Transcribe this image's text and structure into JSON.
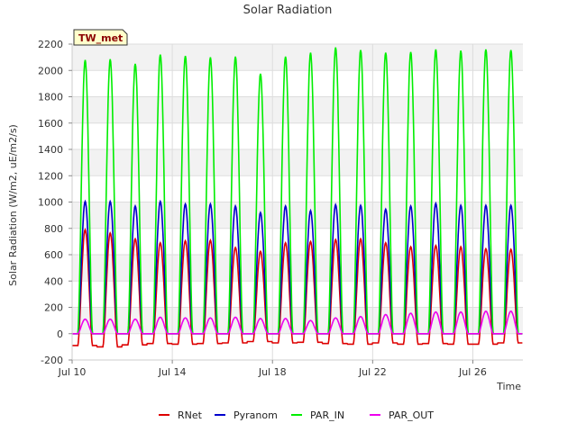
{
  "chart_data": {
    "type": "line",
    "title": "Solar Radiation",
    "xlabel": "Time",
    "ylabel": "Solar Radiation (W/m2, uE/m2/s)",
    "site_label": "TW_met",
    "ylim": [
      -200,
      2200
    ],
    "xlim": [
      "2023-07-10",
      "2023-07-28"
    ],
    "y_ticks": [
      -200,
      0,
      200,
      400,
      600,
      800,
      1000,
      1200,
      1400,
      1600,
      1800,
      2000,
      2200
    ],
    "x_ticks": [
      {
        "date": "2023-07-10",
        "label": "Jul 10"
      },
      {
        "date": "2023-07-14",
        "label": "Jul 14"
      },
      {
        "date": "2023-07-18",
        "label": "Jul 18"
      },
      {
        "date": "2023-07-22",
        "label": "Jul 22"
      },
      {
        "date": "2023-07-26",
        "label": "Jul 26"
      }
    ],
    "grid": true,
    "legend_position": "bottom",
    "days": [
      "2023-07-10",
      "2023-07-11",
      "2023-07-12",
      "2023-07-13",
      "2023-07-14",
      "2023-07-15",
      "2023-07-16",
      "2023-07-17",
      "2023-07-18",
      "2023-07-19",
      "2023-07-20",
      "2023-07-21",
      "2023-07-22",
      "2023-07-23",
      "2023-07-24",
      "2023-07-25",
      "2023-07-26",
      "2023-07-27"
    ],
    "series": [
      {
        "name": "RNet",
        "color": "#dd0000",
        "daily_peak": [
          790,
          765,
          720,
          690,
          705,
          710,
          655,
          625,
          690,
          700,
          715,
          720,
          690,
          660,
          670,
          660,
          645,
          640
        ],
        "night_value": [
          -90,
          -100,
          -85,
          -75,
          -80,
          -75,
          -70,
          -60,
          -70,
          -65,
          -75,
          -80,
          -70,
          -80,
          -75,
          -80,
          -80,
          -70
        ]
      },
      {
        "name": "Pyranom",
        "color": "#0000cc",
        "daily_peak": [
          1005,
          1005,
          970,
          1005,
          985,
          985,
          970,
          920,
          970,
          935,
          980,
          975,
          945,
          970,
          990,
          975,
          975,
          975
        ],
        "night_value": [
          0,
          0,
          0,
          0,
          0,
          0,
          0,
          0,
          0,
          0,
          0,
          0,
          0,
          0,
          0,
          0,
          0,
          0
        ]
      },
      {
        "name": "PAR_IN",
        "color": "#00ee00",
        "daily_peak": [
          2080,
          2085,
          2050,
          2120,
          2110,
          2100,
          2105,
          1975,
          2105,
          2135,
          2175,
          2155,
          2135,
          2140,
          2160,
          2150,
          2160,
          2155
        ],
        "night_value": [
          0,
          0,
          0,
          0,
          0,
          0,
          0,
          0,
          0,
          0,
          0,
          0,
          0,
          0,
          0,
          0,
          0,
          0
        ]
      },
      {
        "name": "PAR_OUT",
        "color": "#ee00ee",
        "daily_peak": [
          110,
          110,
          110,
          125,
          120,
          120,
          125,
          115,
          115,
          100,
          120,
          130,
          145,
          155,
          165,
          165,
          170,
          170
        ],
        "night_value": [
          0,
          0,
          0,
          0,
          0,
          0,
          0,
          0,
          0,
          0,
          0,
          0,
          0,
          0,
          0,
          0,
          0,
          0
        ]
      }
    ]
  }
}
